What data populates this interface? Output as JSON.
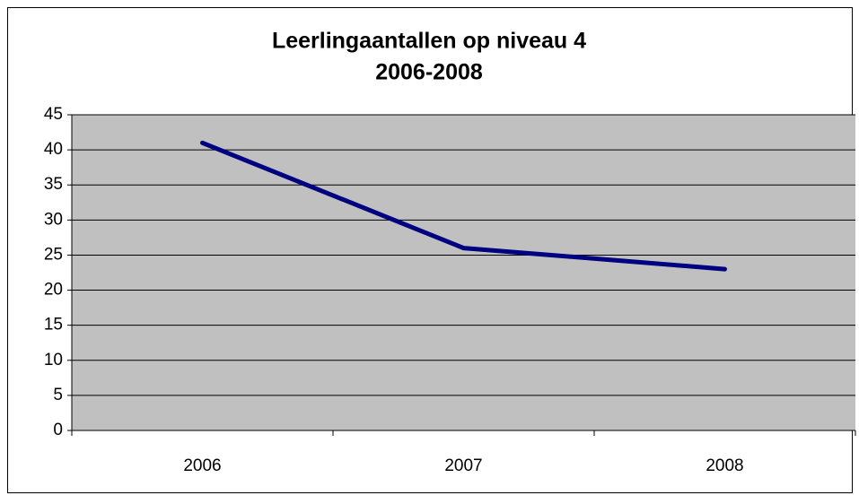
{
  "chart_data": {
    "type": "line",
    "title": "Leerlingaantallen op niveau 4",
    "subtitle": "2006-2008",
    "categories": [
      "2006",
      "2007",
      "2008"
    ],
    "series": [
      {
        "name": "Leerlingaantallen",
        "color": "#000080",
        "values": [
          41,
          26,
          23
        ]
      }
    ],
    "ylim": [
      0,
      45
    ],
    "yticks": [
      0,
      5,
      10,
      15,
      20,
      25,
      30,
      35,
      40,
      45
    ],
    "grid": true,
    "legend": false,
    "plot_background": "#c0c0c0"
  }
}
